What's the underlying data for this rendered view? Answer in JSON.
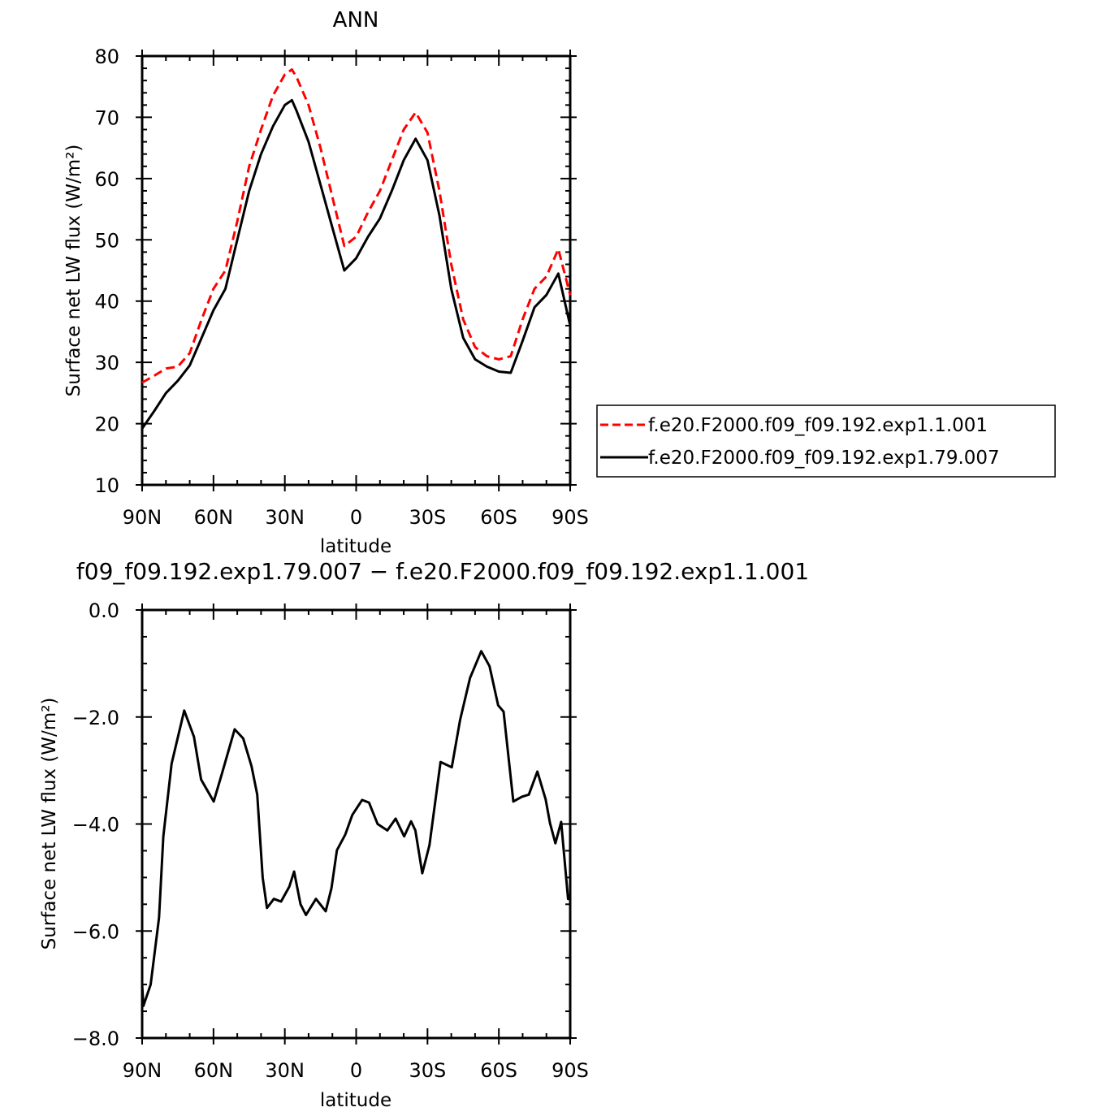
{
  "chart_data": [
    {
      "type": "line",
      "title": "ANN",
      "xlabel": "latitude",
      "ylabel": "Surface net LW flux (W/m²)",
      "xlim": [
        90,
        -90
      ],
      "ylim": [
        10,
        80
      ],
      "xticks": [
        90,
        60,
        30,
        0,
        -30,
        -60,
        -90
      ],
      "xtick_labels": [
        "90N",
        "60N",
        "30N",
        "0",
        "30S",
        "60S",
        "90S"
      ],
      "yticks": [
        10,
        20,
        30,
        40,
        50,
        60,
        70,
        80
      ],
      "ytick_labels": [
        "10",
        "20",
        "30",
        "40",
        "50",
        "60",
        "70",
        "80"
      ],
      "grid": false,
      "legend_position": "right",
      "x": [
        90,
        85,
        80,
        75,
        70,
        65,
        60,
        55,
        50,
        45,
        40,
        35,
        30,
        27,
        25,
        20,
        15,
        10,
        5,
        0,
        -5,
        -10,
        -15,
        -20,
        -25,
        -30,
        -35,
        -40,
        -45,
        -50,
        -55,
        -60,
        -65,
        -70,
        -75,
        -80,
        -85,
        -90
      ],
      "series": [
        {
          "name": "f.e20.F2000.f09_f09.192.exp1.1.001",
          "color": "#ff0000",
          "dash": "dashed",
          "values": [
            26.7,
            27.8,
            29.0,
            29.3,
            31.5,
            37.0,
            42.0,
            45.0,
            53.0,
            62.0,
            68.0,
            73.5,
            77.0,
            77.8,
            76.5,
            72.0,
            65.0,
            57.0,
            49.0,
            50.5,
            54.5,
            58.0,
            63.0,
            68.0,
            70.8,
            67.5,
            58.0,
            46.0,
            37.0,
            32.5,
            31.0,
            30.5,
            31.0,
            37.0,
            42.0,
            44.0,
            48.5,
            41.0
          ]
        },
        {
          "name": "f.e20.F2000.f09_f09.192.exp1.79.007",
          "color": "#000000",
          "dash": "solid",
          "values": [
            19.2,
            22.0,
            25.0,
            27.0,
            29.5,
            34.0,
            38.5,
            42.0,
            50.0,
            58.0,
            64.0,
            68.5,
            72.0,
            72.8,
            71.0,
            66.0,
            59.0,
            52.0,
            45.0,
            47.0,
            50.5,
            53.5,
            58.0,
            63.0,
            66.5,
            63.0,
            54.0,
            42.0,
            34.0,
            30.5,
            29.3,
            28.5,
            28.3,
            33.5,
            39.0,
            41.0,
            44.5,
            36.0
          ]
        }
      ]
    },
    {
      "type": "line",
      "title": "f09_f09.192.exp1.79.007 − f.e20.F2000.f09_f09.192.exp1.1.001",
      "xlabel": "latitude",
      "ylabel": "Surface net LW flux (W/m²)",
      "xlim": [
        90,
        -90
      ],
      "ylim": [
        -8.0,
        0.0
      ],
      "xticks": [
        90,
        60,
        30,
        0,
        -30,
        -60,
        -90
      ],
      "xtick_labels": [
        "90N",
        "60N",
        "30N",
        "0",
        "30S",
        "60S",
        "90S"
      ],
      "yticks": [
        0,
        -2,
        -4,
        -6,
        -8
      ],
      "ytick_labels": [
        "0.0",
        "−2.0",
        "−4.0",
        "−6.0",
        "−8.0"
      ],
      "grid": false,
      "x": [
        90,
        89.5,
        86.4,
        82.9,
        81.1,
        77.6,
        72.3,
        68.2,
        65.2,
        59.9,
        56.4,
        51.1,
        47.5,
        44.0,
        41.6,
        39.3,
        37.5,
        34.6,
        31.6,
        28.1,
        26.1,
        23.4,
        21.1,
        16.9,
        12.8,
        10.4,
        8.1,
        4.6,
        1.6,
        -2.5,
        -5.4,
        -9.0,
        -13.1,
        -16.6,
        -20.2,
        -23.1,
        -24.9,
        -27.8,
        -30.8,
        -35.5,
        -40.2,
        -43.7,
        -47.9,
        -52.6,
        -56.1,
        -59.7,
        -62.0,
        -66.1,
        -69.7,
        -72.6,
        -76.2,
        -79.7,
        -81.5,
        -83.8,
        -86.2,
        -89.1,
        -90
      ],
      "series": [
        {
          "color": "#000000",
          "dash": "solid",
          "values": [
            -7.0,
            -7.4,
            -7.0,
            -5.75,
            -4.23,
            -2.87,
            -1.88,
            -2.37,
            -3.17,
            -3.58,
            -3.05,
            -2.23,
            -2.4,
            -2.92,
            -3.45,
            -5.0,
            -5.57,
            -5.4,
            -5.45,
            -5.17,
            -4.89,
            -5.5,
            -5.7,
            -5.4,
            -5.63,
            -5.2,
            -4.49,
            -4.2,
            -3.83,
            -3.55,
            -3.6,
            -4.0,
            -4.12,
            -3.9,
            -4.23,
            -3.95,
            -4.12,
            -4.92,
            -4.4,
            -2.84,
            -2.94,
            -2.06,
            -1.27,
            -0.77,
            -1.05,
            -1.78,
            -1.9,
            -3.58,
            -3.49,
            -3.45,
            -3.02,
            -3.54,
            -3.98,
            -4.36,
            -3.96,
            -5.4,
            -5.4
          ]
        }
      ]
    }
  ]
}
